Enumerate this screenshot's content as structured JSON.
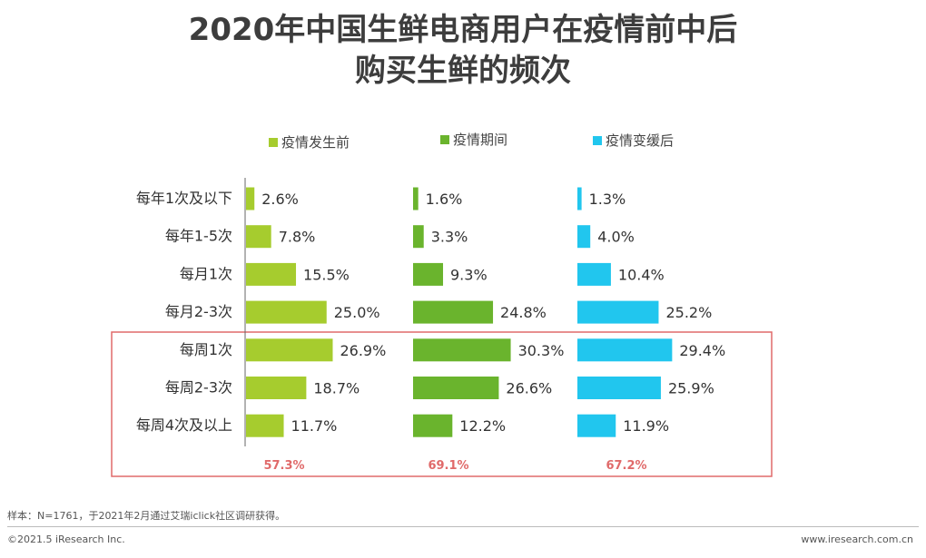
{
  "title_line1": "2020年中国生鲜电商用户在疫情前中后",
  "title_line2": "购买生鲜的频次",
  "legend": [
    {
      "label": "疫情发生前",
      "color": "#a6cc2e"
    },
    {
      "label": "疫情期间",
      "color": "#6ab42d"
    },
    {
      "label": "疫情变缓后",
      "color": "#21c6ee"
    }
  ],
  "chart_data": {
    "type": "bar",
    "orientation": "horizontal",
    "categories": [
      "每年1次及以下",
      "每年1-5次",
      "每月1次",
      "每月2-3次",
      "每周1次",
      "每周2-3次",
      "每周4次及以上"
    ],
    "series": [
      {
        "name": "疫情发生前",
        "values": [
          2.6,
          7.8,
          15.5,
          25.0,
          26.9,
          18.7,
          11.7
        ],
        "labels": [
          "2.6%",
          "7.8%",
          "15.5%",
          "25.0%",
          "26.9%",
          "18.7%",
          "11.7%"
        ],
        "color": "#a6cc2e"
      },
      {
        "name": "疫情期间",
        "values": [
          1.6,
          3.3,
          9.3,
          24.8,
          30.3,
          26.6,
          12.2
        ],
        "labels": [
          "1.6%",
          "3.3%",
          "9.3%",
          "24.8%",
          "30.3%",
          "26.6%",
          "12.2%"
        ],
        "color": "#6ab42d"
      },
      {
        "name": "疫情变缓后",
        "values": [
          1.3,
          4.0,
          10.4,
          25.2,
          29.4,
          25.9,
          11.9
        ],
        "labels": [
          "1.3%",
          "4.0%",
          "10.4%",
          "25.2%",
          "29.4%",
          "25.9%",
          "11.9%"
        ],
        "color": "#21c6ee"
      }
    ],
    "highlight": {
      "categories": [
        "每周1次",
        "每周2-3次",
        "每周4次及以上"
      ],
      "totals": [
        "57.3%",
        "69.1%",
        "67.2%"
      ],
      "color": "#e06a6a"
    }
  },
  "footer": {
    "note": "样本：N=1761，于2021年2月通过艾瑞iclick社区调研获得。",
    "copyright": "©2021.5 iResearch Inc.",
    "website": "www.iresearch.com.cn"
  }
}
